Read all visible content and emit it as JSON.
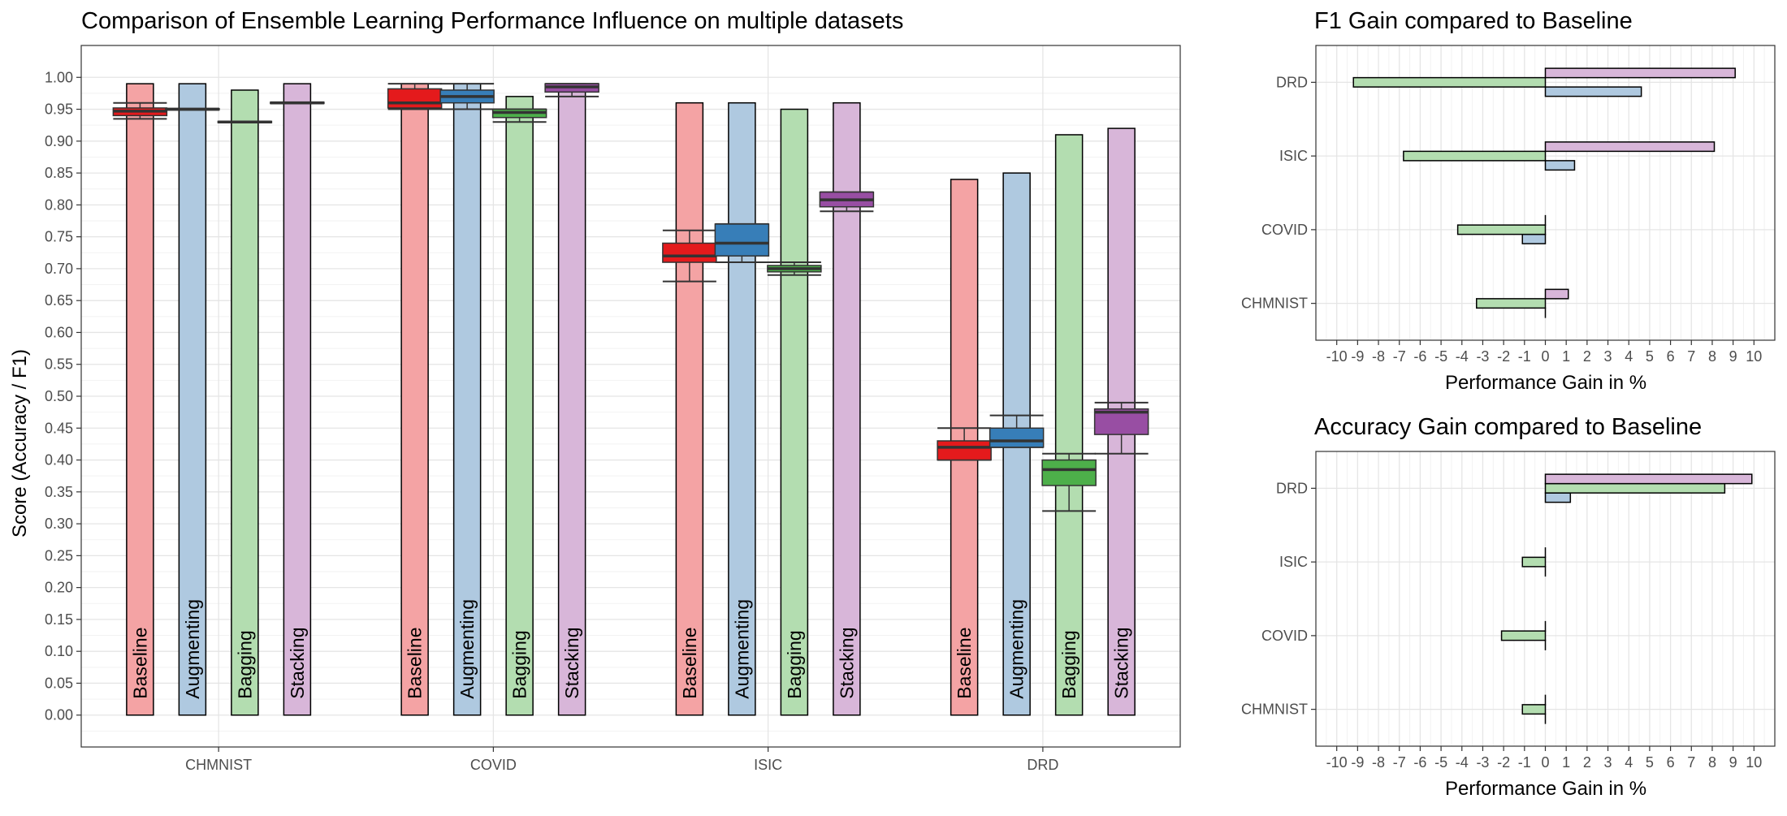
{
  "chart_data": [
    {
      "type": "bar",
      "title": "Comparison of Ensemble Learning Performance Influence on multiple datasets",
      "xlabel": "",
      "ylabel": "Score (Accuracy / F1)",
      "ylim": [
        -0.05,
        1.05
      ],
      "yticks": [
        "0.00",
        "0.05",
        "0.10",
        "0.15",
        "0.20",
        "0.25",
        "0.30",
        "0.35",
        "0.40",
        "0.45",
        "0.50",
        "0.55",
        "0.60",
        "0.65",
        "0.70",
        "0.75",
        "0.80",
        "0.85",
        "0.90",
        "0.95",
        "1.00"
      ],
      "grid": true,
      "categories": [
        "CHMNIST",
        "COVID",
        "ISIC",
        "DRD"
      ],
      "methods": [
        "Baseline",
        "Augmenting",
        "Bagging",
        "Stacking"
      ],
      "colors": {
        "Baseline": {
          "bar": "#F4A3A4",
          "box": "#E41A1C"
        },
        "Augmenting": {
          "bar": "#AFC9E0",
          "box": "#377EB8"
        },
        "Bagging": {
          "bar": "#B3DDB0",
          "box": "#4DAF4A"
        },
        "Stacking": {
          "bar": "#D8B6D9",
          "box": "#984EA3"
        }
      },
      "series": [
        {
          "name": "Baseline",
          "values": [
            0.99,
            0.99,
            0.96,
            0.84
          ]
        },
        {
          "name": "Augmenting",
          "values": [
            0.99,
            0.99,
            0.96,
            0.85
          ]
        },
        {
          "name": "Bagging",
          "values": [
            0.98,
            0.97,
            0.95,
            0.91
          ]
        },
        {
          "name": "Stacking",
          "values": [
            0.99,
            0.99,
            0.96,
            0.92
          ]
        }
      ],
      "boxplots": [
        {
          "category": "CHMNIST",
          "method": "Baseline",
          "min": 0.935,
          "q1": 0.94,
          "median": 0.947,
          "q3": 0.952,
          "max": 0.96
        },
        {
          "category": "CHMNIST",
          "method": "Augmenting",
          "min": 0.949,
          "q1": 0.949,
          "median": 0.95,
          "q3": 0.951,
          "max": 0.951
        },
        {
          "category": "CHMNIST",
          "method": "Bagging",
          "min": 0.929,
          "q1": 0.929,
          "median": 0.93,
          "q3": 0.931,
          "max": 0.931
        },
        {
          "category": "CHMNIST",
          "method": "Stacking",
          "min": 0.959,
          "q1": 0.959,
          "median": 0.96,
          "q3": 0.961,
          "max": 0.961
        },
        {
          "category": "COVID",
          "method": "Baseline",
          "min": 0.95,
          "q1": 0.952,
          "median": 0.96,
          "q3": 0.982,
          "max": 0.99
        },
        {
          "category": "COVID",
          "method": "Augmenting",
          "min": 0.95,
          "q1": 0.96,
          "median": 0.97,
          "q3": 0.98,
          "max": 0.99
        },
        {
          "category": "COVID",
          "method": "Bagging",
          "min": 0.93,
          "q1": 0.937,
          "median": 0.945,
          "q3": 0.95,
          "max": 0.95
        },
        {
          "category": "COVID",
          "method": "Stacking",
          "min": 0.97,
          "q1": 0.977,
          "median": 0.985,
          "q3": 0.99,
          "max": 0.99
        },
        {
          "category": "ISIC",
          "method": "Baseline",
          "min": 0.68,
          "q1": 0.71,
          "median": 0.72,
          "q3": 0.74,
          "max": 0.76
        },
        {
          "category": "ISIC",
          "method": "Augmenting",
          "min": 0.71,
          "q1": 0.72,
          "median": 0.74,
          "q3": 0.77,
          "max": 0.77
        },
        {
          "category": "ISIC",
          "method": "Bagging",
          "min": 0.69,
          "q1": 0.695,
          "median": 0.7,
          "q3": 0.705,
          "max": 0.71
        },
        {
          "category": "ISIC",
          "method": "Stacking",
          "min": 0.79,
          "q1": 0.797,
          "median": 0.808,
          "q3": 0.82,
          "max": 0.82
        },
        {
          "category": "DRD",
          "method": "Baseline",
          "min": 0.4,
          "q1": 0.4,
          "median": 0.42,
          "q3": 0.43,
          "max": 0.45
        },
        {
          "category": "DRD",
          "method": "Augmenting",
          "min": 0.42,
          "q1": 0.42,
          "median": 0.43,
          "q3": 0.45,
          "max": 0.47
        },
        {
          "category": "DRD",
          "method": "Bagging",
          "min": 0.32,
          "q1": 0.36,
          "median": 0.385,
          "q3": 0.4,
          "max": 0.41
        },
        {
          "category": "DRD",
          "method": "Stacking",
          "min": 0.41,
          "q1": 0.44,
          "median": 0.475,
          "q3": 0.48,
          "max": 0.49
        }
      ]
    },
    {
      "type": "bar",
      "orientation": "horizontal",
      "title": "F1 Gain compared to Baseline",
      "xlabel": "Performance Gain in %",
      "xlim": [
        -11,
        11
      ],
      "xticks": [
        "-10",
        "-9",
        "-8",
        "-7",
        "-6",
        "-5",
        "-4",
        "-3",
        "-2",
        "-1",
        "0",
        "1",
        "2",
        "3",
        "4",
        "5",
        "6",
        "7",
        "8",
        "9",
        "10"
      ],
      "grid": true,
      "categories": [
        "CHMNIST",
        "COVID",
        "ISIC",
        "DRD"
      ],
      "series": [
        {
          "name": "Augmenting",
          "values": [
            0,
            -1.1,
            1.4,
            4.6
          ],
          "color": "#AFC9E0"
        },
        {
          "name": "Bagging",
          "values": [
            -3.3,
            -4.2,
            -6.8,
            -9.2
          ],
          "color": "#B3DDB0"
        },
        {
          "name": "Stacking",
          "values": [
            1.1,
            0,
            8.1,
            9.1
          ],
          "color": "#D8B6D9"
        }
      ]
    },
    {
      "type": "bar",
      "orientation": "horizontal",
      "title": "Accuracy Gain compared to Baseline",
      "xlabel": "Performance Gain in %",
      "xlim": [
        -11,
        11
      ],
      "xticks": [
        "-10",
        "-9",
        "-8",
        "-7",
        "-6",
        "-5",
        "-4",
        "-3",
        "-2",
        "-1",
        "0",
        "1",
        "2",
        "3",
        "4",
        "5",
        "6",
        "7",
        "8",
        "9",
        "10"
      ],
      "grid": true,
      "categories": [
        "CHMNIST",
        "COVID",
        "ISIC",
        "DRD"
      ],
      "series": [
        {
          "name": "Augmenting",
          "values": [
            0,
            0,
            0,
            1.2
          ],
          "color": "#AFC9E0"
        },
        {
          "name": "Bagging",
          "values": [
            -1.1,
            -2.1,
            -1.1,
            8.6
          ],
          "color": "#B3DDB0"
        },
        {
          "name": "Stacking",
          "values": [
            0,
            0,
            0,
            9.9
          ],
          "color": "#D8B6D9"
        }
      ]
    }
  ]
}
